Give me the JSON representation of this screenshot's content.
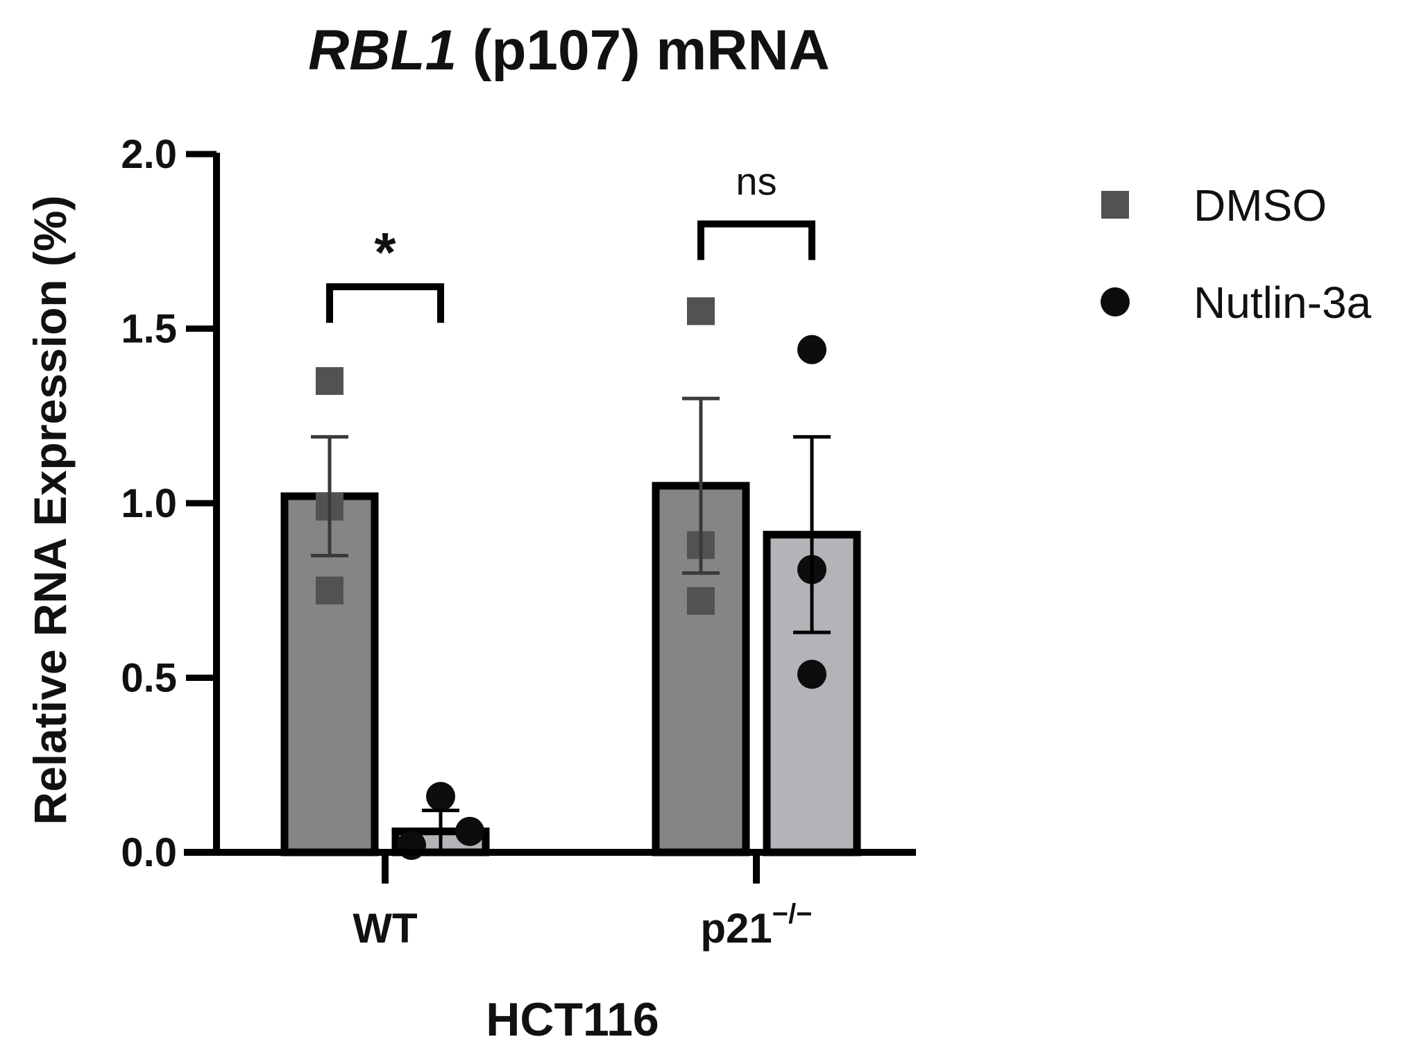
{
  "chart_data": {
    "type": "bar",
    "title_italic": "RBL1",
    "title_rest": " (p107) mRNA",
    "ylabel": "Relative RNA Expression (%)",
    "xlabel": "HCT116",
    "ylim": [
      0,
      2.0
    ],
    "yticks": [
      "0.0",
      "0.5",
      "1.0",
      "1.5",
      "2.0"
    ],
    "ytick_values": [
      0,
      0.5,
      1.0,
      1.5,
      2.0
    ],
    "categories": [
      {
        "label": "WT",
        "superscript": ""
      },
      {
        "label": "p21",
        "superscript": "−/−"
      }
    ],
    "series": [
      {
        "name": "DMSO",
        "marker": "square",
        "bar_color": "#858585",
        "marker_color": "#525252",
        "values": [
          1.02,
          1.05
        ],
        "errors": [
          0.17,
          0.25
        ],
        "points": [
          [
            1.35,
            0.99,
            0.75
          ],
          [
            1.55,
            0.88,
            0.72
          ]
        ]
      },
      {
        "name": "Nutlin-3a",
        "marker": "circle",
        "bar_color": "#b3b4b8",
        "marker_color": "#0d0d0d",
        "values": [
          0.06,
          0.91
        ],
        "errors": [
          0.06,
          0.28
        ],
        "points": [
          [
            0.16,
            0.06,
            0.02
          ],
          [
            1.44,
            0.81,
            0.51
          ]
        ]
      }
    ],
    "significance": [
      "*",
      "ns"
    ],
    "legend_position": "right",
    "grid": false
  }
}
